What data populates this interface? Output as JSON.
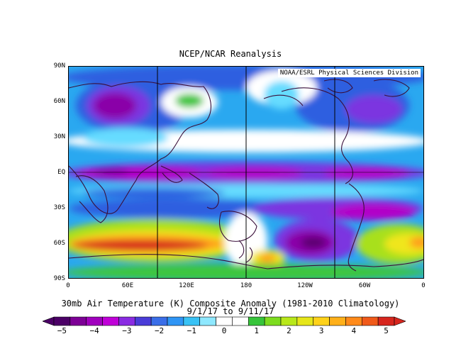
{
  "title": "NCEP/NCAR Reanalysis",
  "credit": "NOAA/ESRL Physical Sciences Division",
  "lat_labels": [
    "90N",
    "60N",
    "30N",
    "EQ",
    "30S",
    "60S",
    "90S"
  ],
  "lon_labels": [
    "0",
    "60E",
    "120E",
    "180",
    "120W",
    "60W",
    "0"
  ],
  "caption_line1": "30mb Air Temperature (K) Composite Anomaly (1981-2010 Climatology)",
  "caption_line2": "9/1/17  to 9/11/17",
  "colorbar": {
    "labels": [
      "−5",
      "−4",
      "−3",
      "−2",
      "−1",
      "0",
      "1",
      "2",
      "3",
      "4",
      "5"
    ],
    "colors": [
      "#4b0066",
      "#7d0096",
      "#a000be",
      "#c000d8",
      "#8a2be2",
      "#4a3cd8",
      "#3a6ee8",
      "#2f95f5",
      "#39c2f5",
      "#8ee8ff",
      "#ffffff",
      "#ffffff",
      "#37c43a",
      "#7ddc1f",
      "#b8e81a",
      "#e6e61a",
      "#ffd21a",
      "#ffb01a",
      "#ff8a1a",
      "#f05a1a",
      "#d7261e"
    ]
  },
  "field_colors": {
    "neg5": "#5b0070",
    "neg4": "#8a00a8",
    "neg3": "#b200c8",
    "neg2": "#7b34e0",
    "neg1a": "#2f5fe0",
    "neg1b": "#2aa8f0",
    "neg05": "#66dcff",
    "zero": "#ffffff",
    "pos1": "#3cc63c",
    "pos2": "#a8e01e",
    "pos3": "#f0e61a",
    "pos4": "#ff9c1a",
    "pos5": "#d41e1e"
  }
}
